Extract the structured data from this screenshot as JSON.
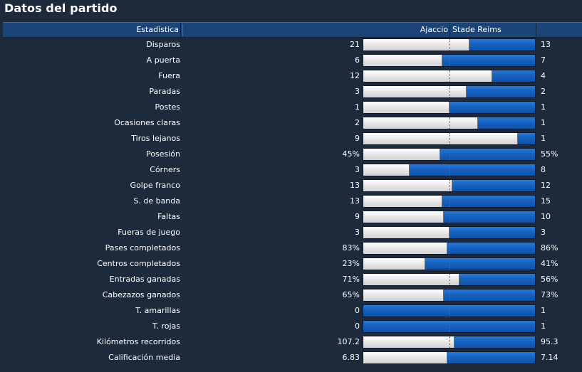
{
  "title": "Datos del partido",
  "header": {
    "stat_label": "Estadística",
    "home_team": "Ajaccio",
    "away_team": "Stade Reims"
  },
  "colors": {
    "background": "#1c2a3c",
    "header": "#1d4476",
    "home_bar": "#e6e6e6",
    "away_bar": "#1762c0"
  },
  "stats": [
    {
      "label": "Disparos",
      "home": "21",
      "away": "13",
      "home_share": 0.62
    },
    {
      "label": "A puerta",
      "home": "6",
      "away": "7",
      "home_share": 0.46
    },
    {
      "label": "Fuera",
      "home": "12",
      "away": "4",
      "home_share": 0.75
    },
    {
      "label": "Paradas",
      "home": "3",
      "away": "2",
      "home_share": 0.6
    },
    {
      "label": "Postes",
      "home": "1",
      "away": "1",
      "home_share": 0.5
    },
    {
      "label": "Ocasiones claras",
      "home": "2",
      "away": "1",
      "home_share": 0.67
    },
    {
      "label": "Tiros lejanos",
      "home": "9",
      "away": "1",
      "home_share": 0.9
    },
    {
      "label": "Posesión",
      "home": "45%",
      "away": "55%",
      "home_share": 0.45
    },
    {
      "label": "Córners",
      "home": "3",
      "away": "8",
      "home_share": 0.27
    },
    {
      "label": "Golpe franco",
      "home": "13",
      "away": "12",
      "home_share": 0.52
    },
    {
      "label": "S. de banda",
      "home": "13",
      "away": "15",
      "home_share": 0.46
    },
    {
      "label": "Faltas",
      "home": "9",
      "away": "10",
      "home_share": 0.47
    },
    {
      "label": "Fueras de juego",
      "home": "3",
      "away": "3",
      "home_share": 0.5
    },
    {
      "label": "Pases completados",
      "home": "83%",
      "away": "86%",
      "home_share": 0.49
    },
    {
      "label": "Centros completados",
      "home": "23%",
      "away": "41%",
      "home_share": 0.36
    },
    {
      "label": "Entradas ganadas",
      "home": "71%",
      "away": "56%",
      "home_share": 0.56
    },
    {
      "label": "Cabezazos ganados",
      "home": "65%",
      "away": "73%",
      "home_share": 0.47
    },
    {
      "label": "T. amarillas",
      "home": "0",
      "away": "1",
      "home_share": 0.0
    },
    {
      "label": "T. rojas",
      "home": "0",
      "away": "1",
      "home_share": 0.0
    },
    {
      "label": "Kilómetros recorridos",
      "home": "107.2",
      "away": "95.3",
      "home_share": 0.53
    },
    {
      "label": "Calificación media",
      "home": "6.83",
      "away": "7.14",
      "home_share": 0.49
    }
  ]
}
